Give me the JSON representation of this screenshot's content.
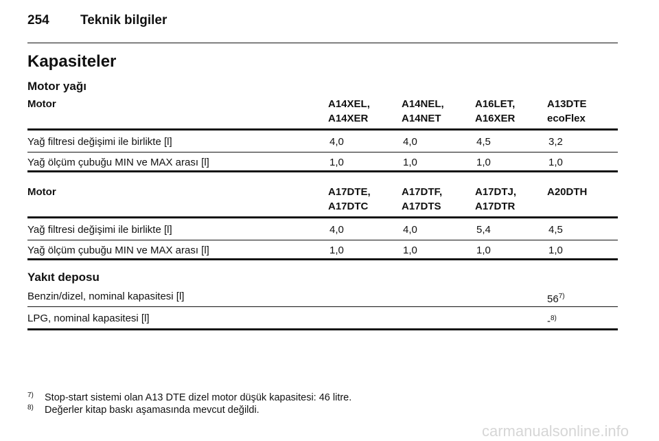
{
  "header": {
    "page_number": "254",
    "title": "Teknik bilgiler"
  },
  "section_title": "Kapasiteler",
  "subsection_oil": "Motor yağı",
  "oil_tables": [
    {
      "header": [
        [
          "Motor"
        ],
        [
          "A14XEL,",
          "A14XER"
        ],
        [
          "A14NEL,",
          "A14NET"
        ],
        [
          "A16LET,",
          "A16XER"
        ],
        [
          "A13DTE",
          "ecoFlex"
        ]
      ],
      "rows": [
        [
          "Yağ filtresi değişimi ile birlikte [l]",
          "4,0",
          "4,0",
          "4,5",
          "3,2"
        ],
        [
          "Yağ ölçüm çubuğu MIN ve MAX arası [l]",
          "1,0",
          "1,0",
          "1,0",
          "1,0"
        ]
      ]
    },
    {
      "header": [
        [
          "Motor"
        ],
        [
          "A17DTE,",
          "A17DTC"
        ],
        [
          "A17DTF,",
          "A17DTS"
        ],
        [
          "A17DTJ,",
          "A17DTR"
        ],
        [
          "A20DTH"
        ]
      ],
      "rows": [
        [
          "Yağ filtresi değişimi ile birlikte [l]",
          "4,0",
          "4,0",
          "5,4",
          "4,5"
        ],
        [
          "Yağ ölçüm çubuğu MIN ve MAX arası [l]",
          "1,0",
          "1,0",
          "1,0",
          "1,0"
        ]
      ]
    }
  ],
  "subsection_fuel": "Yakıt deposu",
  "fuel_table": {
    "rows": [
      {
        "label": "Benzin/dizel, nominal kapasitesi [l]",
        "value": "56",
        "note": "7)"
      },
      {
        "label": "LPG, nominal kapasitesi [l]",
        "value": "-",
        "note": "8)"
      }
    ]
  },
  "footnotes": [
    {
      "marker": "7)",
      "text": "Stop-start sistemi olan A13 DTE dizel motor düşük kapasitesi: 46 litre."
    },
    {
      "marker": "8)",
      "text": "Değerler kitap baskı aşamasında mevcut değildi."
    }
  ],
  "watermark": "carmanualsonline.info"
}
